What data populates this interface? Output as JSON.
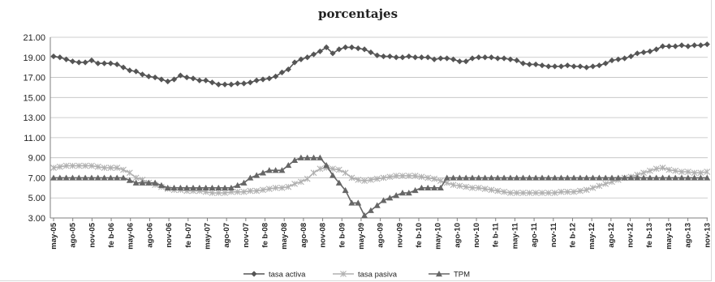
{
  "chart_data": {
    "type": "line",
    "title": "porcentajes",
    "xlabel": "",
    "ylabel": "",
    "ylim": [
      3.0,
      21.0
    ],
    "yticks": [
      "3.00",
      "5.00",
      "7.00",
      "9.00",
      "11.00",
      "13.00",
      "15.00",
      "17.00",
      "19.00",
      "21.00"
    ],
    "xticks": [
      "may-05",
      "ago-05",
      "nov-05",
      "feb-06",
      "may-06",
      "ago-06",
      "nov-06",
      "feb-07",
      "may-07",
      "ago-07",
      "nov-07",
      "feb-08",
      "may-08",
      "ago-08",
      "nov-08",
      "feb-09",
      "may-09",
      "ago-09",
      "nov-09",
      "feb-10",
      "may-10",
      "ago-10",
      "nov-10",
      "feb-11",
      "may-11",
      "ago-11",
      "nov-11",
      "feb-12",
      "may-12",
      "ago-12",
      "nov-12",
      "feb-13",
      "may-13",
      "ago-13",
      "nov-13"
    ],
    "xtick_display": [
      "may-05",
      "ago-05",
      "nov-05",
      "fe b-06",
      "may-06",
      "ago-06",
      "nov-06",
      "fe b-07",
      "may-07",
      "ago-07",
      "nov-07",
      "fe b-08",
      "may-08",
      "ago-08",
      "nov-08",
      "fe b-09",
      "may-09",
      "ago-09",
      "nov-09",
      "fe b-10",
      "may-10",
      "ago-10",
      "nov-10",
      "fe b-11",
      "may-11",
      "ago-11",
      "nov-11",
      "fe b-12",
      "may-12",
      "ago-12",
      "nov-12",
      "fe b-13",
      "may-13",
      "ago-13",
      "nov-13"
    ],
    "grid": true,
    "legend": "bottom",
    "series": [
      {
        "name": "tasa activa",
        "color": "#555555",
        "marker": "diamond",
        "values": [
          19.1,
          19.0,
          18.8,
          18.6,
          18.5,
          18.5,
          18.7,
          18.4,
          18.4,
          18.4,
          18.3,
          18.0,
          17.7,
          17.6,
          17.3,
          17.1,
          17.0,
          16.8,
          16.6,
          16.8,
          17.2,
          17.0,
          16.9,
          16.7,
          16.7,
          16.5,
          16.3,
          16.3,
          16.3,
          16.4,
          16.4,
          16.5,
          16.7,
          16.8,
          16.9,
          17.1,
          17.5,
          17.8,
          18.5,
          18.8,
          19.0,
          19.3,
          19.6,
          20.0,
          19.4,
          19.8,
          20.0,
          20.0,
          19.9,
          19.8,
          19.5,
          19.2,
          19.1,
          19.1,
          19.0,
          19.0,
          19.1,
          19.0,
          19.0,
          19.0,
          18.8,
          18.9,
          18.9,
          18.8,
          18.6,
          18.6,
          18.9,
          19.0,
          19.0,
          19.0,
          18.9,
          18.9,
          18.8,
          18.7,
          18.4,
          18.3,
          18.3,
          18.2,
          18.1,
          18.1,
          18.1,
          18.2,
          18.1,
          18.1,
          18.0,
          18.1,
          18.2,
          18.4,
          18.7,
          18.8,
          18.9,
          19.1,
          19.4,
          19.5,
          19.6,
          19.8,
          20.1,
          20.1,
          20.1,
          20.2,
          20.1,
          20.2,
          20.2,
          20.3
        ]
      },
      {
        "name": "tasa pasiva",
        "color": "#b0b0b0",
        "marker": "asterisk",
        "values": [
          8.0,
          8.1,
          8.2,
          8.2,
          8.2,
          8.2,
          8.2,
          8.1,
          8.0,
          8.0,
          8.0,
          7.8,
          7.5,
          7.0,
          6.8,
          6.5,
          6.3,
          6.1,
          5.9,
          5.8,
          5.8,
          5.7,
          5.7,
          5.7,
          5.6,
          5.5,
          5.5,
          5.5,
          5.6,
          5.6,
          5.6,
          5.7,
          5.7,
          5.8,
          5.9,
          6.0,
          6.0,
          6.1,
          6.4,
          6.6,
          6.9,
          7.5,
          7.9,
          8.0,
          7.9,
          7.8,
          7.5,
          7.0,
          6.8,
          6.7,
          6.8,
          6.9,
          7.0,
          7.1,
          7.2,
          7.2,
          7.2,
          7.2,
          7.1,
          7.0,
          6.9,
          6.7,
          6.5,
          6.3,
          6.2,
          6.1,
          6.0,
          6.0,
          5.9,
          5.8,
          5.7,
          5.6,
          5.5,
          5.5,
          5.5,
          5.5,
          5.5,
          5.5,
          5.5,
          5.5,
          5.6,
          5.6,
          5.6,
          5.7,
          5.8,
          6.0,
          6.2,
          6.4,
          6.6,
          6.8,
          7.0,
          7.1,
          7.3,
          7.5,
          7.7,
          7.9,
          8.0,
          7.8,
          7.7,
          7.6,
          7.6,
          7.5,
          7.5,
          7.6
        ]
      },
      {
        "name": "TPM",
        "color": "#666666",
        "marker": "triangle",
        "values": [
          7.0,
          7.0,
          7.0,
          7.0,
          7.0,
          7.0,
          7.0,
          7.0,
          7.0,
          7.0,
          7.0,
          7.0,
          6.75,
          6.5,
          6.5,
          6.5,
          6.5,
          6.25,
          6.0,
          6.0,
          6.0,
          6.0,
          6.0,
          6.0,
          6.0,
          6.0,
          6.0,
          6.0,
          6.0,
          6.25,
          6.5,
          7.0,
          7.25,
          7.5,
          7.75,
          7.75,
          7.75,
          8.25,
          8.75,
          9.0,
          9.0,
          9.0,
          9.0,
          8.25,
          7.25,
          6.5,
          5.75,
          4.5,
          4.5,
          3.25,
          3.75,
          4.25,
          4.75,
          5.0,
          5.25,
          5.5,
          5.5,
          5.75,
          6.0,
          6.0,
          6.0,
          6.0,
          7.0,
          7.0,
          7.0,
          7.0,
          7.0,
          7.0,
          7.0,
          7.0,
          7.0,
          7.0,
          7.0,
          7.0,
          7.0,
          7.0,
          7.0,
          7.0,
          7.0,
          7.0,
          7.0,
          7.0,
          7.0,
          7.0,
          7.0,
          7.0,
          7.0,
          7.0,
          7.0,
          7.0,
          7.0,
          7.0,
          7.0,
          7.0,
          7.0,
          7.0,
          7.0,
          7.0,
          7.0,
          7.0,
          7.0,
          7.0,
          7.0,
          7.0
        ]
      }
    ]
  }
}
